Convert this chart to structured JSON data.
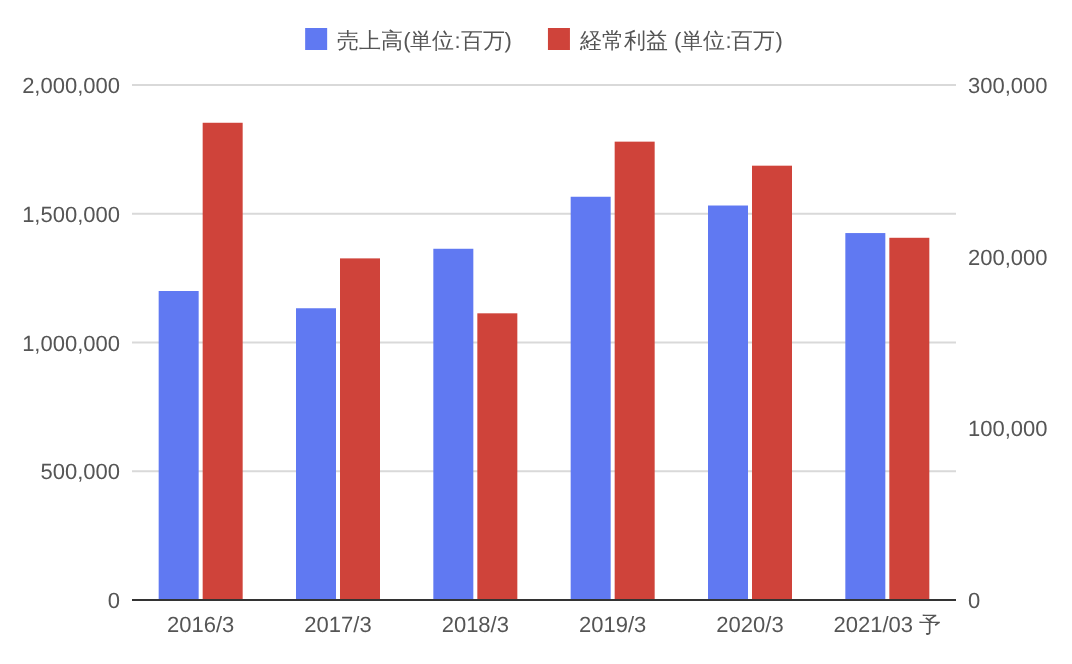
{
  "chart_data": {
    "type": "bar",
    "categories": [
      "2016/3",
      "2017/3",
      "2018/3",
      "2019/3",
      "2020/3",
      "2021/03 予"
    ],
    "series": [
      {
        "name": "売上高(単位:百万)",
        "color": "#6079f2",
        "values": [
          1200000,
          1133000,
          1364000,
          1566000,
          1532000,
          1425000
        ]
      },
      {
        "name": "経常利益 (単位:百万)",
        "color": "#cf433a",
        "axis": "y2",
        "values": [
          278000,
          199000,
          167000,
          267000,
          253000,
          211000
        ]
      }
    ],
    "ylim": [
      0,
      2000000
    ],
    "yticks": [
      {
        "value": 0,
        "label": "0"
      },
      {
        "value": 500000,
        "label": "500,000"
      },
      {
        "value": 1000000,
        "label": "1,000,000"
      },
      {
        "value": 1500000,
        "label": "1,500,000"
      },
      {
        "value": 2000000,
        "label": "2,000,000"
      }
    ],
    "y2lim": [
      0,
      300000
    ],
    "y2ticks": [
      {
        "value": 0,
        "label": "0"
      },
      {
        "value": 100000,
        "label": "100,000"
      },
      {
        "value": 200000,
        "label": "200,000"
      },
      {
        "value": 300000,
        "label": "300,000"
      }
    ],
    "grid": "y",
    "legend": "top"
  }
}
